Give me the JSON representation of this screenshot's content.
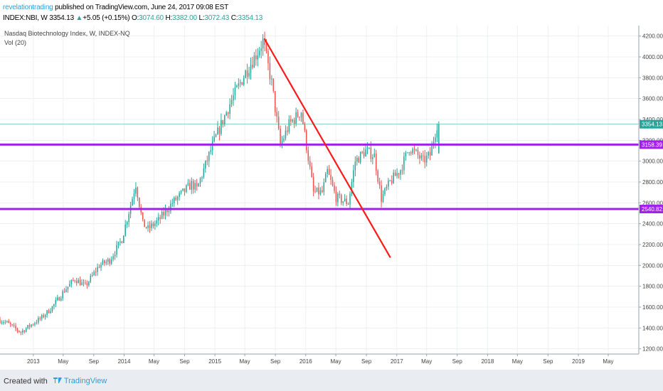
{
  "header": {
    "author": "revelationtrading",
    "published": "published on TradingView.com, June 24, 2017 09:08 EST",
    "symbol": "INDEX:NBI, W",
    "last": "3354.13",
    "change": "+5.05 (+0.15%)",
    "open_label": "O:",
    "open": "3074.60",
    "high_label": "H:",
    "high": "3382.00",
    "low_label": "L:",
    "low": "3072.43",
    "close_label": "C:",
    "close": "3354.13"
  },
  "pane": {
    "title": "Nasdaq Biotechnology Index, W, INDEX-NQ",
    "indicator": "Vol (20)"
  },
  "footer": {
    "created_with": "Created with",
    "brand": "TradingView"
  },
  "colors": {
    "up": "#26a69a",
    "down": "#ef5350",
    "trendline": "#ff1a1a",
    "hline": "#a020f0",
    "last_price": "#26a69a"
  },
  "chart_data": {
    "type": "candlestick",
    "title": "Nasdaq Biotechnology Index, W, INDEX-NQ",
    "y_axis": {
      "side": "right",
      "ylim": [
        1150,
        4300
      ],
      "ticks": [
        "1200.00",
        "1400.00",
        "1600.00",
        "1800.00",
        "2000.00",
        "2200.00",
        "2400.00",
        "2600.00",
        "2800.00",
        "3000.00",
        "3200.00",
        "3400.00",
        "3600.00",
        "3800.00",
        "4000.00",
        "4200.00"
      ]
    },
    "x_axis": {
      "range": [
        "2012-08-20",
        "2019-09-01"
      ],
      "ticks": [
        {
          "label": "2013",
          "date": "2013-01-01"
        },
        {
          "label": "May",
          "date": "2013-05-01"
        },
        {
          "label": "Sep",
          "date": "2013-09-01"
        },
        {
          "label": "2014",
          "date": "2014-01-01"
        },
        {
          "label": "May",
          "date": "2014-05-01"
        },
        {
          "label": "Sep",
          "date": "2014-09-01"
        },
        {
          "label": "2015",
          "date": "2015-01-01"
        },
        {
          "label": "May",
          "date": "2015-05-01"
        },
        {
          "label": "Sep",
          "date": "2015-09-01"
        },
        {
          "label": "2016",
          "date": "2016-01-01"
        },
        {
          "label": "May",
          "date": "2016-05-01"
        },
        {
          "label": "Sep",
          "date": "2016-09-01"
        },
        {
          "label": "2017",
          "date": "2017-01-01"
        },
        {
          "label": "May",
          "date": "2017-05-01"
        },
        {
          "label": "Sep",
          "date": "2017-09-01"
        },
        {
          "label": "2018",
          "date": "2018-01-01"
        },
        {
          "label": "May",
          "date": "2018-05-01"
        },
        {
          "label": "Sep",
          "date": "2018-09-01"
        },
        {
          "label": "2019",
          "date": "2019-01-01"
        },
        {
          "label": "May",
          "date": "2019-05-01"
        }
      ]
    },
    "grid": true,
    "price_path": [
      [
        "2012-08-20",
        1480
      ],
      [
        "2012-09-24",
        1450
      ],
      [
        "2012-10-29",
        1390
      ],
      [
        "2012-11-19",
        1360
      ],
      [
        "2012-12-24",
        1420
      ],
      [
        "2013-02-11",
        1500
      ],
      [
        "2013-03-25",
        1600
      ],
      [
        "2013-05-13",
        1760
      ],
      [
        "2013-06-24",
        1870
      ],
      [
        "2013-08-05",
        1800
      ],
      [
        "2013-09-30",
        2000
      ],
      [
        "2013-11-11",
        2050
      ],
      [
        "2013-12-30",
        2250
      ],
      [
        "2014-02-24",
        2780
      ],
      [
        "2014-03-24",
        2400
      ],
      [
        "2014-04-14",
        2350
      ],
      [
        "2014-05-26",
        2430
      ],
      [
        "2014-07-21",
        2600
      ],
      [
        "2014-10-06",
        2780
      ],
      [
        "2014-10-27",
        2730
      ],
      [
        "2014-12-29",
        3150
      ],
      [
        "2015-03-09",
        3550
      ],
      [
        "2015-05-11",
        3850
      ],
      [
        "2015-06-29",
        4050
      ],
      [
        "2015-07-20",
        4150
      ],
      [
        "2015-08-24",
        3750
      ],
      [
        "2015-09-28",
        3150
      ],
      [
        "2015-11-02",
        3350
      ],
      [
        "2015-12-21",
        3480
      ],
      [
        "2016-02-08",
        2700
      ],
      [
        "2016-03-14",
        2700
      ],
      [
        "2016-04-04",
        2900
      ],
      [
        "2016-05-09",
        2650
      ],
      [
        "2016-06-27",
        2600
      ],
      [
        "2016-07-25",
        3000
      ],
      [
        "2016-09-05",
        3100
      ],
      [
        "2016-10-10",
        3050
      ],
      [
        "2016-11-07",
        2640
      ],
      [
        "2016-12-12",
        2800
      ],
      [
        "2017-01-23",
        2920
      ],
      [
        "2017-02-27",
        3130
      ],
      [
        "2017-03-27",
        3070
      ],
      [
        "2017-04-24",
        3000
      ],
      [
        "2017-05-22",
        3060
      ],
      [
        "2017-06-19",
        3354
      ]
    ],
    "last_bar": {
      "date": "2017-06-19",
      "open": 3074.6,
      "high": 3382.0,
      "low": 3072.43,
      "close": 3354.13
    },
    "horizontal_levels": [
      {
        "label": "3158.39",
        "value": 3158.39
      },
      {
        "label": "2540.82",
        "value": 2540.82
      }
    ],
    "last_price": {
      "label": "3354.13",
      "value": 3354.13
    },
    "trendline": {
      "start": {
        "date": "2015-07-20",
        "value": 4170
      },
      "end": {
        "date": "2016-12-05",
        "value": 2080
      }
    }
  }
}
